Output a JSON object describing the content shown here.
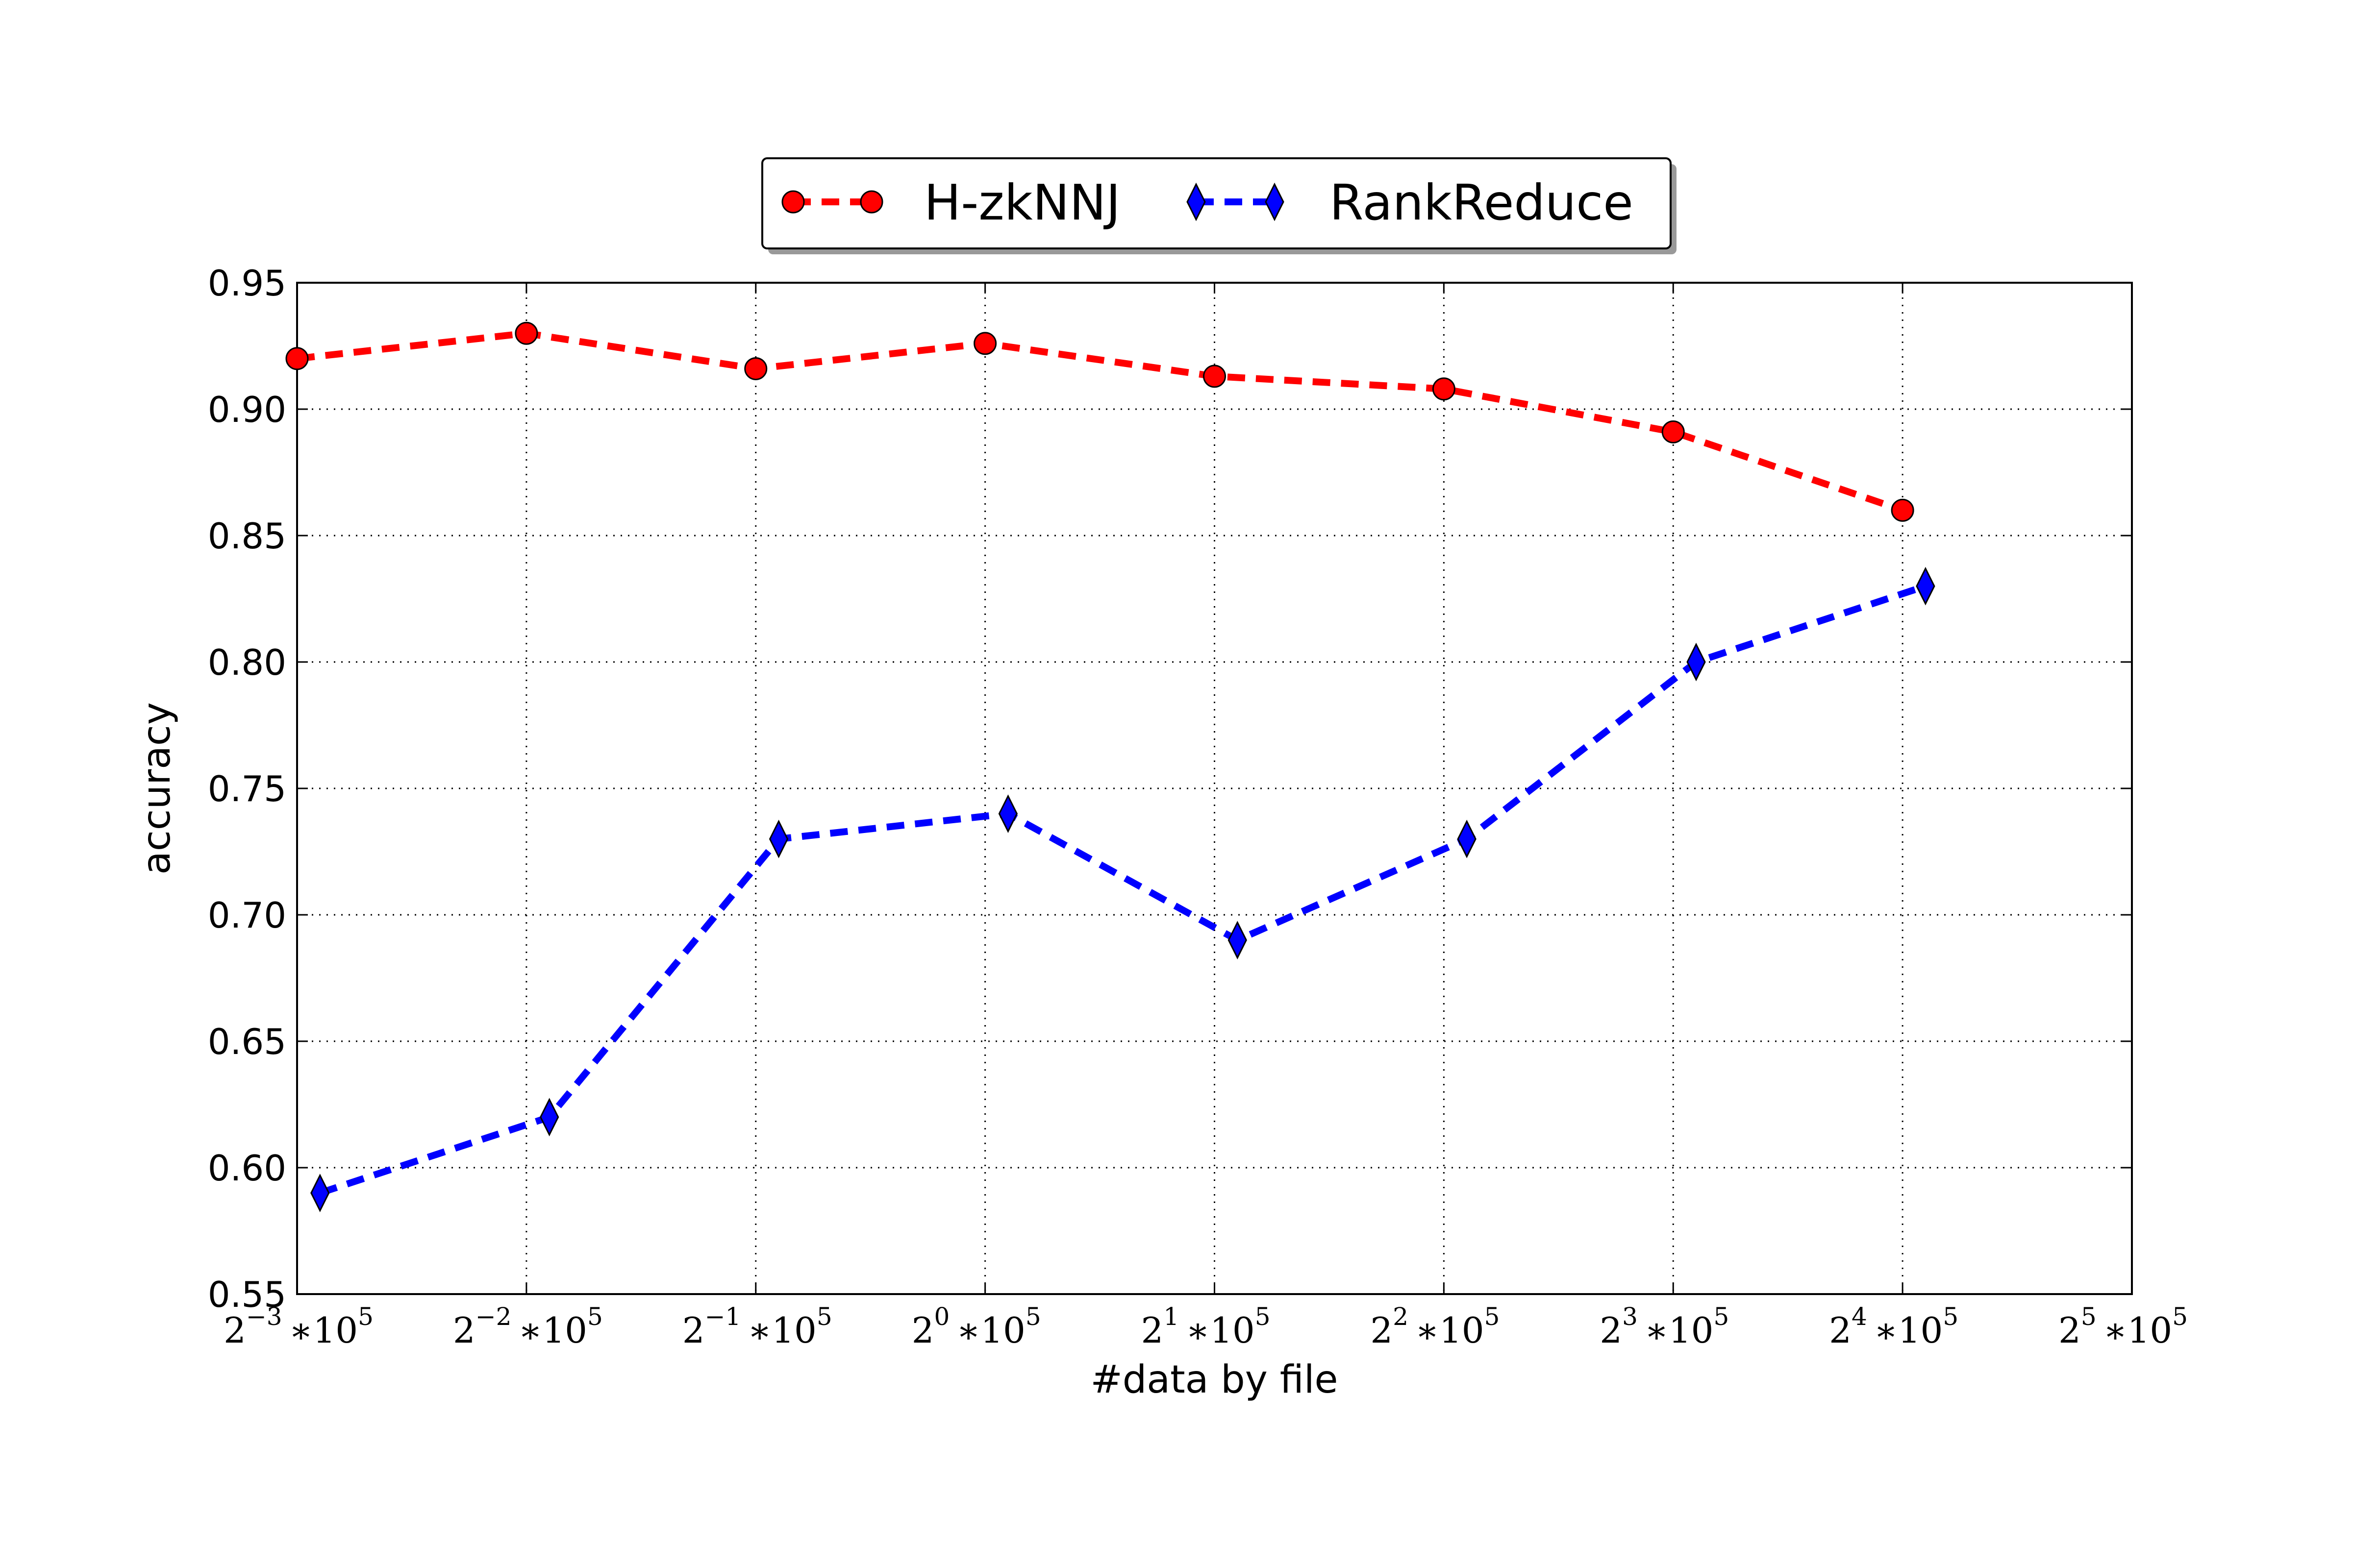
{
  "chart_data": {
    "type": "line",
    "xlabel": "#data by file",
    "ylabel": "accuracy",
    "x_tick_labels": [
      {
        "base": "2",
        "exp": "−3",
        "suffix": "∗10",
        "suffix_exp": "5"
      },
      {
        "base": "2",
        "exp": "−2",
        "suffix": "∗10",
        "suffix_exp": "5"
      },
      {
        "base": "2",
        "exp": "−1",
        "suffix": "∗10",
        "suffix_exp": "5"
      },
      {
        "base": "2",
        "exp": "0",
        "suffix": "∗10",
        "suffix_exp": "5"
      },
      {
        "base": "2",
        "exp": "1",
        "suffix": "∗10",
        "suffix_exp": "5"
      },
      {
        "base": "2",
        "exp": "2",
        "suffix": "∗10",
        "suffix_exp": "5"
      },
      {
        "base": "2",
        "exp": "3",
        "suffix": "∗10",
        "suffix_exp": "5"
      },
      {
        "base": "2",
        "exp": "4",
        "suffix": "∗10",
        "suffix_exp": "5"
      },
      {
        "base": "2",
        "exp": "5",
        "suffix": "∗10",
        "suffix_exp": "5"
      }
    ],
    "y_ticks": [
      "0.55",
      "0.60",
      "0.65",
      "0.70",
      "0.75",
      "0.80",
      "0.85",
      "0.90",
      "0.95"
    ],
    "xlim": [
      0,
      8
    ],
    "ylim": [
      0.55,
      0.95
    ],
    "grid": true,
    "legend_position": "top-center",
    "series": [
      {
        "name": "H-zkNNJ",
        "color": "#ff0000",
        "marker": "circle",
        "x": [
          0,
          1,
          2,
          3,
          4,
          5,
          6,
          7
        ],
        "y": [
          0.92,
          0.93,
          0.916,
          0.926,
          0.913,
          0.908,
          0.891,
          0.86
        ]
      },
      {
        "name": "RankReduce",
        "color": "#0000ff",
        "marker": "diamond",
        "x": [
          0.1,
          1.1,
          2.1,
          3.1,
          4.1,
          5.1,
          6.1,
          7.1
        ],
        "y": [
          0.59,
          0.62,
          0.73,
          0.74,
          0.69,
          0.73,
          0.8,
          0.83
        ]
      }
    ]
  }
}
